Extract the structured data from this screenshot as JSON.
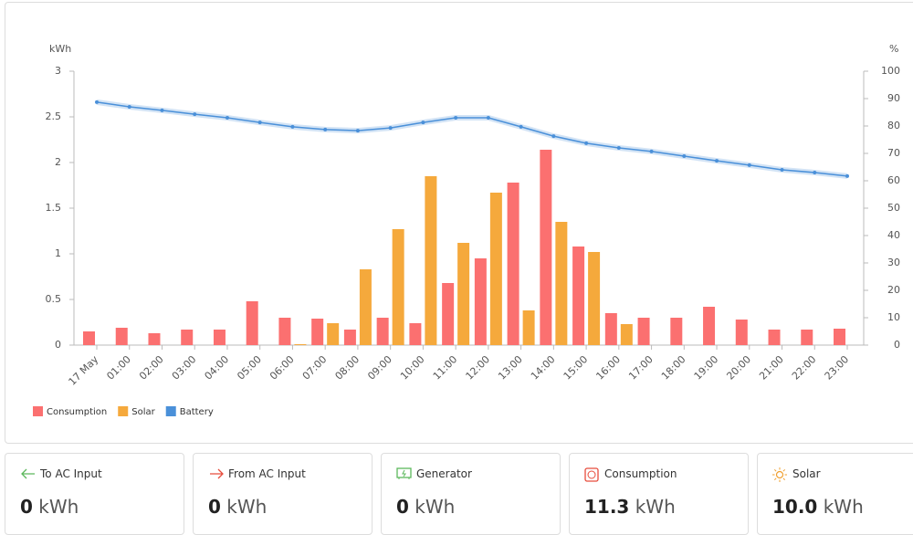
{
  "chart_data": {
    "type": "bar",
    "y_label": "kWh",
    "y2_label": "%",
    "categories": [
      "17 May",
      "01:00",
      "02:00",
      "03:00",
      "04:00",
      "05:00",
      "06:00",
      "07:00",
      "08:00",
      "09:00",
      "10:00",
      "11:00",
      "12:00",
      "13:00",
      "14:00",
      "15:00",
      "16:00",
      "17:00",
      "18:00",
      "19:00",
      "20:00",
      "21:00",
      "22:00",
      "23:00"
    ],
    "series": [
      {
        "name": "Consumption",
        "color": "#fb7070",
        "values": [
          0.15,
          0.19,
          0.13,
          0.17,
          0.17,
          0.48,
          0.3,
          0.29,
          0.17,
          0.3,
          0.24,
          0.68,
          0.95,
          1.78,
          2.14,
          1.08,
          0.35,
          0.3,
          0.3,
          0.42,
          0.28,
          0.17,
          0.17,
          0.18
        ]
      },
      {
        "name": "Solar",
        "color": "#f5a93c",
        "values": [
          0,
          0,
          0,
          0,
          0,
          0,
          0.01,
          0.24,
          0.83,
          1.27,
          1.85,
          1.12,
          1.67,
          0.38,
          1.35,
          1.02,
          0.23,
          0,
          0,
          0,
          0,
          0,
          0,
          0
        ]
      },
      {
        "name": "Battery",
        "color": "#4a90d9",
        "axis": "y2",
        "values": [
          88.7,
          87,
          85.7,
          84.3,
          83,
          81.3,
          79.7,
          78.7,
          78.3,
          79.3,
          81.3,
          83,
          83,
          79.7,
          76.3,
          73.7,
          72,
          70.7,
          69,
          67.3,
          65.7,
          64,
          63,
          61.7
        ]
      }
    ],
    "ylim": [
      0,
      3
    ],
    "yticks": [
      0,
      0.5,
      1,
      1.5,
      2,
      2.5,
      3
    ],
    "y2lim": [
      0,
      100
    ],
    "y2ticks": [
      0,
      10,
      20,
      30,
      40,
      50,
      60,
      70,
      80,
      90,
      100
    ],
    "legend": "bottom-left"
  },
  "cards": [
    {
      "title": "To AC Input",
      "value": "0",
      "unit": "kWh"
    },
    {
      "title": "From AC Input",
      "value": "0",
      "unit": "kWh"
    },
    {
      "title": "Generator",
      "value": "0",
      "unit": "kWh"
    },
    {
      "title": "Consumption",
      "value": "11.3",
      "unit": "kWh"
    },
    {
      "title": "Solar",
      "value": "10.0",
      "unit": "kWh"
    }
  ]
}
